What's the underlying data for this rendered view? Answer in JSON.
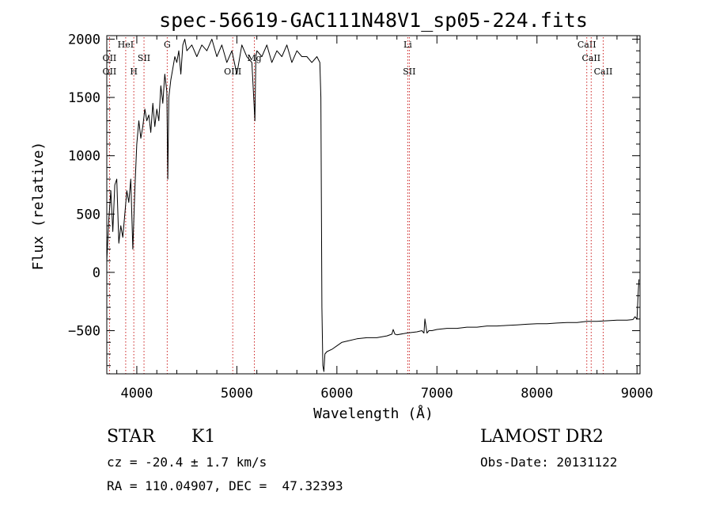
{
  "chart_data": {
    "type": "line",
    "title": "spec-56619-GAC111N48V1_sp05-224.fits",
    "xlabel": "Wavelength (Å)",
    "ylabel": "Flux (relative)",
    "xlim": [
      3700,
      9030
    ],
    "ylim": [
      -870,
      2030
    ],
    "xticks": [
      4000,
      5000,
      6000,
      7000,
      8000,
      9000
    ],
    "yticks": [
      -500,
      0,
      500,
      1000,
      1500,
      2000
    ],
    "grid": false,
    "line_color": "#000000",
    "marker_color": "#cc2222",
    "series": [
      {
        "x": [
          3700,
          3720,
          3740,
          3760,
          3780,
          3800,
          3820,
          3840,
          3860,
          3880,
          3900,
          3920,
          3940,
          3960,
          3980,
          4000,
          4020,
          4040,
          4060,
          4080,
          4100,
          4120,
          4140,
          4160,
          4180,
          4200,
          4220,
          4240,
          4260,
          4280,
          4300,
          4310,
          4320,
          4340,
          4360,
          4380,
          4400,
          4420,
          4440,
          4460,
          4480,
          4500,
          4550,
          4600,
          4650,
          4700,
          4750,
          4800,
          4850,
          4900,
          4950,
          5000,
          5050,
          5100,
          5150,
          5180,
          5190,
          5200,
          5250,
          5300,
          5350,
          5400,
          5450,
          5500,
          5550,
          5600,
          5650,
          5700,
          5750,
          5800,
          5830,
          5840,
          5850,
          5860,
          5870,
          5880,
          5900,
          5950,
          6000,
          6050,
          6100,
          6200,
          6300,
          6400,
          6500,
          6550,
          6563,
          6580,
          6600,
          6700,
          6800,
          6850,
          6870,
          6880,
          6900,
          6920,
          6950,
          7000,
          7100,
          7200,
          7300,
          7400,
          7500,
          7600,
          7700,
          7800,
          7900,
          8000,
          8100,
          8200,
          8300,
          8400,
          8500,
          8600,
          8700,
          8800,
          8900,
          8960,
          8980,
          8990,
          9000,
          9010,
          9020
        ],
        "y": [
          100,
          450,
          700,
          350,
          750,
          800,
          250,
          400,
          300,
          500,
          700,
          600,
          800,
          200,
          700,
          1100,
          1300,
          1150,
          1250,
          1400,
          1300,
          1350,
          1200,
          1450,
          1250,
          1400,
          1300,
          1600,
          1450,
          1700,
          1550,
          800,
          1500,
          1650,
          1750,
          1850,
          1800,
          1900,
          1700,
          1950,
          2000,
          1900,
          1950,
          1850,
          1950,
          1900,
          2000,
          1850,
          1950,
          1800,
          1900,
          1700,
          1950,
          1850,
          1800,
          1300,
          1850,
          1900,
          1850,
          1950,
          1800,
          1900,
          1850,
          1950,
          1800,
          1900,
          1850,
          1850,
          1800,
          1850,
          1800,
          1500,
          -300,
          -800,
          -850,
          -700,
          -680,
          -660,
          -630,
          -600,
          -590,
          -570,
          -560,
          -560,
          -545,
          -530,
          -490,
          -530,
          -535,
          -520,
          -510,
          -500,
          -520,
          -400,
          -520,
          -500,
          -500,
          -490,
          -480,
          -480,
          -470,
          -470,
          -460,
          -460,
          -455,
          -450,
          -445,
          -440,
          -440,
          -435,
          -430,
          -430,
          -420,
          -420,
          -415,
          -410,
          -410,
          -405,
          -380,
          -390,
          -400,
          -200,
          -60
        ]
      }
    ],
    "markers": [
      {
        "x": 3727,
        "label": "OII",
        "row": 2
      },
      {
        "x": 3727,
        "label": "OII",
        "row": 3
      },
      {
        "x": 3889,
        "label": "HeI",
        "row": 1
      },
      {
        "x": 3970,
        "label": "H",
        "row": 3
      },
      {
        "x": 4072,
        "label": "SII",
        "row": 2
      },
      {
        "x": 4304,
        "label": "G",
        "row": 1
      },
      {
        "x": 4959,
        "label": "OIII",
        "row": 3
      },
      {
        "x": 5175,
        "label": "Mg",
        "row": 2
      },
      {
        "x": 6708,
        "label": "Li",
        "row": 1
      },
      {
        "x": 6724,
        "label": "SII",
        "row": 3
      },
      {
        "x": 8498,
        "label": "CaII",
        "row": 1
      },
      {
        "x": 8542,
        "label": "CaII",
        "row": 2
      },
      {
        "x": 8662,
        "label": "CaII",
        "row": 3
      }
    ]
  },
  "info": {
    "class_label": "STAR",
    "subclass_label": "K1",
    "survey": "LAMOST DR2",
    "cz": "cz = -20.4 ± 1.7 km/s",
    "obs_date": "Obs-Date: 20131122",
    "radec": "RA = 110.04907, DEC =  47.32393"
  }
}
